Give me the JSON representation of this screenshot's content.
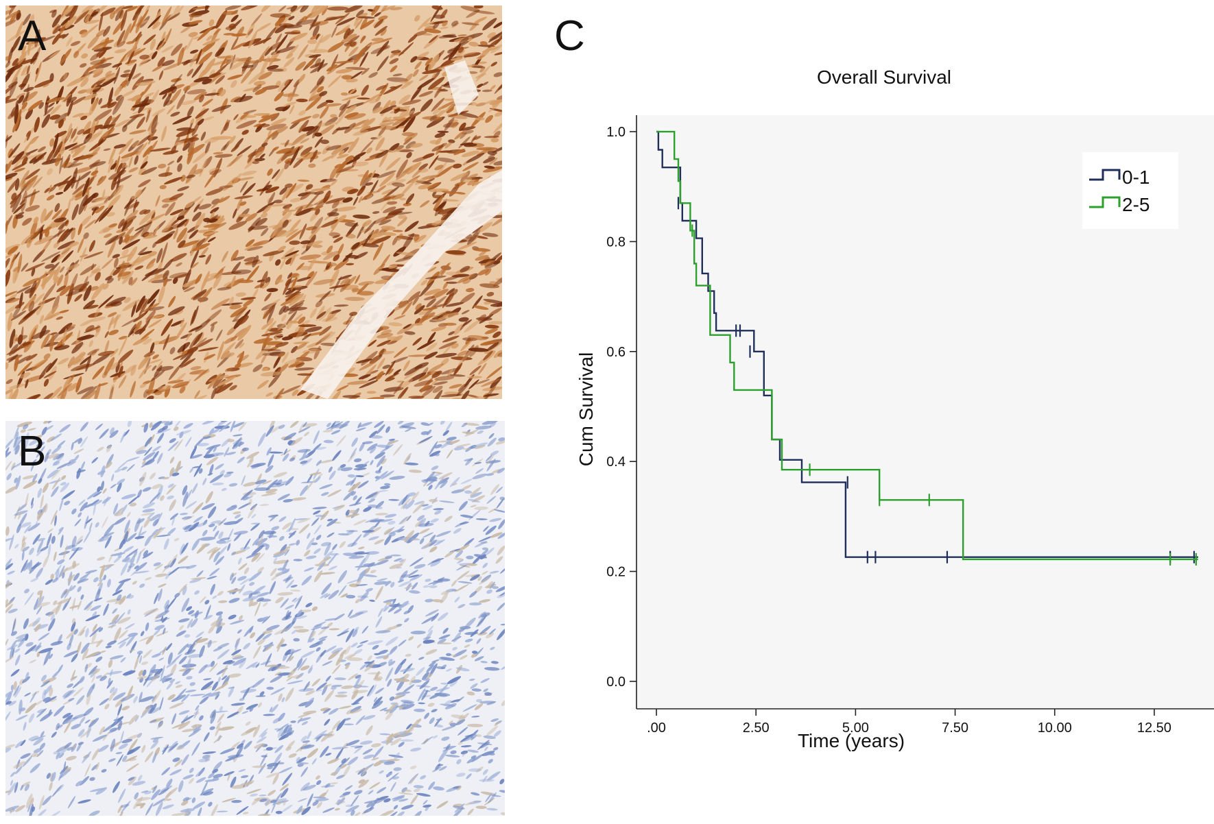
{
  "panels": {
    "a_label": "A",
    "b_label": "B",
    "c_label": "C"
  },
  "colors": {
    "stain_strong_bg": "#e9c9a6",
    "stain_strong_dark": "#8a3d12",
    "stain_strong_mid": "#b86a2c",
    "stain_weak_bg": "#eef0f6",
    "stain_weak_cell": "#7f95c8",
    "plot_bg": "#f6f6f6",
    "series_0_1": "#1f2f5a",
    "series_2_5": "#2ca02c"
  },
  "chart_data": {
    "type": "line",
    "title": "Overall Survival",
    "xlabel": "Time (years)",
    "ylabel": "Cum Survival",
    "xlim": [
      -0.5,
      14.0
    ],
    "ylim": [
      -0.05,
      1.03
    ],
    "xticks": [
      ".00",
      "2.50",
      "5.00",
      "7.50",
      "10.00",
      "12.50"
    ],
    "xtick_values": [
      0,
      2.5,
      5,
      7.5,
      10,
      12.5
    ],
    "yticks": [
      "0.0",
      "0.2",
      "0.4",
      "0.6",
      "0.8",
      "1.0"
    ],
    "ytick_values": [
      0,
      0.2,
      0.4,
      0.6,
      0.8,
      1.0
    ],
    "grid": false,
    "legend_position": "top-right",
    "series": [
      {
        "name": "0-1",
        "color": "#1f2f5a",
        "steps": [
          [
            0,
            1.0
          ],
          [
            0.05,
            0.967
          ],
          [
            0.15,
            0.935
          ],
          [
            0.6,
            0.87
          ],
          [
            0.65,
            0.838
          ],
          [
            1.0,
            0.806
          ],
          [
            1.15,
            0.742
          ],
          [
            1.3,
            0.71
          ],
          [
            1.45,
            0.67
          ],
          [
            1.5,
            0.638
          ],
          [
            2.45,
            0.6
          ],
          [
            2.7,
            0.52
          ],
          [
            2.9,
            0.44
          ],
          [
            3.1,
            0.403
          ],
          [
            3.65,
            0.362
          ],
          [
            4.75,
            0.226
          ],
          [
            13.6,
            0.226
          ]
        ],
        "censored": [
          [
            0.55,
            0.87
          ],
          [
            2.0,
            0.638
          ],
          [
            2.1,
            0.638
          ],
          [
            2.35,
            0.6
          ],
          [
            4.8,
            0.362
          ],
          [
            5.3,
            0.226
          ],
          [
            5.5,
            0.226
          ],
          [
            7.3,
            0.226
          ],
          [
            12.9,
            0.226
          ],
          [
            13.5,
            0.226
          ]
        ]
      },
      {
        "name": "2-5",
        "color": "#2ca02c",
        "steps": [
          [
            0,
            1.0
          ],
          [
            0.45,
            0.95
          ],
          [
            0.55,
            0.91
          ],
          [
            0.6,
            0.87
          ],
          [
            0.85,
            0.82
          ],
          [
            0.95,
            0.76
          ],
          [
            1.0,
            0.72
          ],
          [
            1.35,
            0.63
          ],
          [
            1.85,
            0.58
          ],
          [
            1.95,
            0.53
          ],
          [
            2.9,
            0.44
          ],
          [
            3.15,
            0.385
          ],
          [
            5.6,
            0.33
          ],
          [
            7.7,
            0.222
          ],
          [
            13.6,
            0.222
          ]
        ],
        "censored": [
          [
            0.9,
            0.82
          ],
          [
            3.85,
            0.385
          ],
          [
            5.6,
            0.33
          ],
          [
            6.85,
            0.33
          ],
          [
            12.9,
            0.222
          ],
          [
            13.55,
            0.222
          ]
        ]
      }
    ]
  }
}
